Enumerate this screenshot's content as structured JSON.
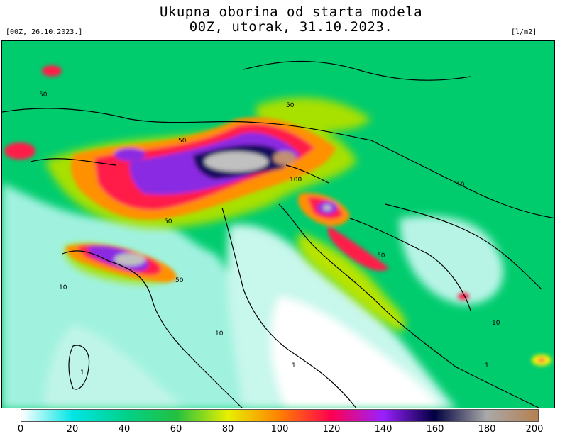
{
  "header": {
    "title_line1": "Ukupna oborina od starta modela",
    "title_line2": "00Z, utorak, 31.10.2023.",
    "model_run": "[00Z, 26.10.2023.]",
    "unit": "[l/m2]"
  },
  "colorbar": {
    "tick_labels": [
      "0",
      "20",
      "40",
      "60",
      "80",
      "100",
      "120",
      "140",
      "160",
      "180",
      "200"
    ],
    "stops": [
      "#ffffff",
      "#00e5e5",
      "#00d28c",
      "#22c040",
      "#e8f000",
      "#ff8000",
      "#ff0050",
      "#9a20ff",
      "#000040",
      "#a9a9a9",
      "#b58050"
    ]
  },
  "map": {
    "contour_labels": [
      "50",
      "50",
      "50",
      "50",
      "50",
      "50",
      "100",
      "10",
      "10",
      "10",
      "10",
      "1",
      "1",
      "1"
    ],
    "colors": {
      "background": "#ffffff",
      "light": "#9af0dc",
      "green": "#00cc6e",
      "lime": "#a8e000",
      "yellow": "#f5f000",
      "orange": "#ff9000",
      "red": "#ff1a4a",
      "purple": "#8a2be2",
      "dark": "#141060",
      "grey": "#c0c0c0",
      "brown": "#c09070",
      "border": "#000000"
    }
  }
}
